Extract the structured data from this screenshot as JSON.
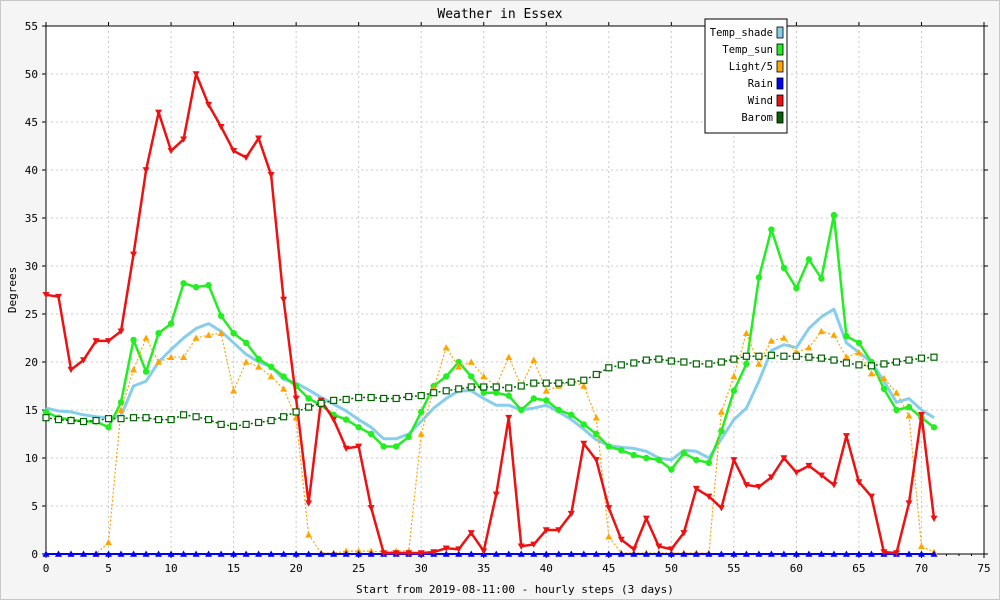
{
  "chart_data": {
    "type": "line",
    "title": "Weather in Essex",
    "xlabel": "Start from 2019-08-11:00 - hourly steps (3 days)",
    "ylabel": "Degrees",
    "xlim": [
      0,
      75
    ],
    "ylim": [
      0,
      55
    ],
    "xticks": [
      0,
      5,
      10,
      15,
      20,
      25,
      30,
      35,
      40,
      45,
      50,
      55,
      60,
      65,
      70,
      75
    ],
    "yticks": [
      0,
      5,
      10,
      15,
      20,
      25,
      30,
      35,
      40,
      45,
      50,
      55
    ],
    "grid": true,
    "legend_position": "top-right",
    "x": [
      0,
      1,
      2,
      3,
      4,
      5,
      6,
      7,
      8,
      9,
      10,
      11,
      12,
      13,
      14,
      15,
      16,
      17,
      18,
      19,
      20,
      21,
      22,
      23,
      24,
      25,
      26,
      27,
      28,
      29,
      30,
      31,
      32,
      33,
      34,
      35,
      36,
      37,
      38,
      39,
      40,
      41,
      42,
      43,
      44,
      45,
      46,
      47,
      48,
      49,
      50,
      51,
      52,
      53,
      54,
      55,
      56,
      57,
      58,
      59,
      60,
      61,
      62,
      63,
      64,
      65,
      66,
      67,
      68,
      69,
      70,
      71
    ],
    "series": [
      {
        "name": "Temp_shade",
        "color": "#87ceeb",
        "marker": "none",
        "values": [
          15.2,
          14.9,
          14.8,
          14.5,
          14.3,
          14.2,
          14.4,
          17.5,
          18,
          20,
          21.3,
          22.5,
          23.5,
          24,
          23.2,
          22,
          20.8,
          20,
          19.5,
          18.2,
          17.8,
          17.1,
          16.3,
          15.6,
          14.9,
          14,
          13.2,
          12,
          12,
          12.5,
          13.8,
          15.2,
          16.2,
          17,
          17,
          16.2,
          15.5,
          15.5,
          15,
          15.2,
          15.5,
          14.8,
          14,
          13,
          11.9,
          11.3,
          11.1,
          11,
          10.7,
          10,
          9.8,
          10.8,
          10.7,
          10,
          12,
          14,
          15.2,
          18,
          21.2,
          21.8,
          21.5,
          23.5,
          24.7,
          25.5,
          22,
          21,
          20,
          18,
          15.8,
          16.2,
          15,
          14.2
        ]
      },
      {
        "name": "Temp_sun",
        "color": "#22ee22",
        "marker": "circle",
        "values": [
          14.8,
          14.2,
          14,
          13.8,
          13.8,
          13.2,
          15.8,
          22.3,
          19,
          23,
          24,
          28.2,
          27.8,
          28,
          24.8,
          23,
          22,
          20.3,
          19.5,
          18.5,
          17.5,
          16.2,
          15.5,
          14.5,
          14,
          13.2,
          12.5,
          11.2,
          11.2,
          12.2,
          14.8,
          17.5,
          18.5,
          20,
          18.5,
          16.8,
          16.8,
          16.5,
          15,
          16.2,
          16,
          15,
          14.5,
          13.5,
          12.5,
          11.2,
          10.8,
          10.3,
          10,
          9.8,
          8.8,
          10.5,
          9.8,
          9.5,
          12.8,
          17,
          19.8,
          28.8,
          33.8,
          29.8,
          27.7,
          30.7,
          28.7,
          35.3,
          22.7,
          22,
          20,
          17.2,
          15,
          15.3,
          14.2,
          13.2
        ]
      },
      {
        "name": "Light/5",
        "color": "#ffa500",
        "marker": "triangle-up",
        "values": [
          0,
          0,
          0,
          0,
          0,
          1.2,
          15,
          19.2,
          22.5,
          20,
          20.5,
          20.5,
          22.5,
          22.8,
          23,
          17,
          20,
          19.5,
          18.5,
          17.2,
          14.2,
          2,
          0.1,
          0.1,
          0.3,
          0.3,
          0.3,
          0.2,
          0.3,
          0.3,
          12.5,
          17.2,
          21.5,
          19.5,
          20,
          18.5,
          17.5,
          20.5,
          17.5,
          20.2,
          17,
          17.5,
          18,
          17.5,
          14.2,
          1.8,
          0.1,
          0.1,
          0.1,
          0.1,
          0.1,
          0.1,
          0.1,
          0.1,
          14.8,
          18.5,
          23,
          19.8,
          22.2,
          22.5,
          21,
          21.5,
          23.2,
          22.8,
          20.5,
          21,
          18.8,
          18.3,
          16.8,
          14.4,
          0.8,
          0.2
        ]
      },
      {
        "name": "Rain",
        "color": "#0000ff",
        "marker": "triangle-up",
        "values": [
          0,
          0,
          0,
          0,
          0,
          0,
          0,
          0,
          0,
          0,
          0,
          0,
          0,
          0,
          0,
          0,
          0,
          0,
          0,
          0,
          0,
          0,
          0,
          0,
          0,
          0,
          0,
          0,
          0,
          0,
          0,
          0,
          0,
          0,
          0,
          0,
          0,
          0,
          0,
          0,
          0,
          0,
          0,
          0,
          0,
          0,
          0,
          0,
          0,
          0,
          0,
          0,
          0,
          0,
          0,
          0,
          0,
          0,
          0,
          0,
          0,
          0,
          0,
          0,
          0,
          0,
          0,
          0,
          0,
          0,
          0,
          0
        ]
      },
      {
        "name": "Wind",
        "color": "#ee1111",
        "marker": "triangle-down",
        "values": [
          27,
          26.8,
          19.2,
          20.2,
          22.2,
          22.2,
          23.2,
          31.2,
          40,
          46,
          42,
          43.2,
          50,
          46.8,
          44.5,
          42,
          41.3,
          43.3,
          39.5,
          26.5,
          16.2,
          5.3,
          16,
          14,
          11,
          11.2,
          4.8,
          0.1,
          0.1,
          0.1,
          0.1,
          0.2,
          0.6,
          0.5,
          2.2,
          0.3,
          6.2,
          14.2,
          0.8,
          1,
          2.5,
          2.5,
          4.2,
          11.5,
          9.8,
          4.8,
          1.5,
          0.5,
          3.7,
          0.8,
          0.5,
          2.2,
          6.8,
          6,
          4.8,
          9.8,
          7.2,
          7,
          8,
          10,
          8.5,
          9.2,
          8.2,
          7.2,
          12.3,
          7.5,
          6,
          0.2,
          0.1,
          5.3,
          14.5,
          3.7
        ]
      },
      {
        "name": "Barom",
        "color": "#006400",
        "marker": "square",
        "values": [
          14.2,
          14,
          13.9,
          13.8,
          13.9,
          14.1,
          14.1,
          14.2,
          14.2,
          14,
          14,
          14.5,
          14.3,
          14,
          13.5,
          13.3,
          13.5,
          13.7,
          13.9,
          14.3,
          14.8,
          15.3,
          15.7,
          16,
          16.1,
          16.3,
          16.3,
          16.2,
          16.2,
          16.4,
          16.5,
          16.8,
          17,
          17.2,
          17.4,
          17.4,
          17.4,
          17.3,
          17.5,
          17.8,
          17.8,
          17.8,
          17.9,
          18.1,
          18.7,
          19.4,
          19.7,
          19.9,
          20.2,
          20.3,
          20.1,
          20,
          19.8,
          19.8,
          20,
          20.3,
          20.6,
          20.6,
          20.7,
          20.6,
          20.6,
          20.5,
          20.4,
          20.2,
          19.9,
          19.7,
          19.6,
          19.8,
          20,
          20.2,
          20.4,
          20.5
        ]
      }
    ]
  }
}
